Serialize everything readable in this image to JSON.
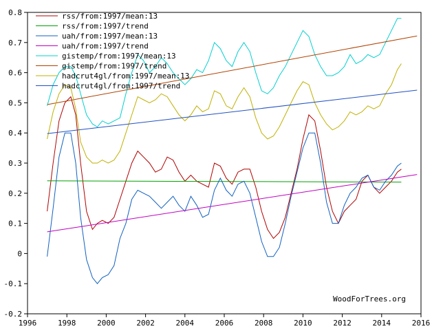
{
  "chart_data": {
    "type": "line",
    "title": "",
    "xlabel": "",
    "ylabel": "",
    "xlim": [
      1996,
      2016
    ],
    "ylim": [
      -0.2,
      0.8
    ],
    "x_ticks": [
      1996,
      1998,
      2000,
      2002,
      2004,
      2006,
      2008,
      2010,
      2012,
      2014,
      2016
    ],
    "y_ticks": [
      -0.2,
      -0.1,
      0,
      0.1,
      0.2,
      0.3,
      0.4,
      0.5,
      0.6,
      0.7,
      0.8
    ],
    "x_tick_labels": [
      "1996",
      "1998",
      "2000",
      "2002",
      "2004",
      "2006",
      "2008",
      "2010",
      "2012",
      "2014",
      "2016"
    ],
    "y_tick_labels": [
      "-0.2",
      "-0.1",
      "0",
      "0.1",
      "0.2",
      "0.3",
      "0.4",
      "0.5",
      "0.6",
      "0.7",
      "0.8"
    ],
    "grid": false,
    "legend_position": "top-left",
    "watermark": "WoodForTrees.org",
    "series": [
      {
        "name": "rss/from:1997/mean:13",
        "color": "#b00000",
        "x": [
          1997.0,
          1997.3,
          1997.6,
          1997.9,
          1998.2,
          1998.45,
          1998.7,
          1999.0,
          1999.3,
          1999.55,
          1999.8,
          2000.1,
          2000.4,
          2000.7,
          2001.0,
          2001.3,
          2001.6,
          2001.9,
          2002.2,
          2002.5,
          2002.8,
          2003.1,
          2003.4,
          2003.7,
          2004.0,
          2004.3,
          2004.6,
          2004.9,
          2005.2,
          2005.5,
          2005.8,
          2006.1,
          2006.4,
          2006.7,
          2007.0,
          2007.3,
          2007.6,
          2007.9,
          2008.2,
          2008.5,
          2008.8,
          2009.1,
          2009.4,
          2009.7,
          2010.0,
          2010.3,
          2010.6,
          2010.9,
          2011.2,
          2011.5,
          2011.8,
          2012.1,
          2012.4,
          2012.7,
          2013.0,
          2013.3,
          2013.6,
          2013.9,
          2014.2,
          2014.5,
          2014.8,
          2015.0
        ],
        "y": [
          0.14,
          0.3,
          0.44,
          0.5,
          0.52,
          0.46,
          0.3,
          0.14,
          0.08,
          0.1,
          0.11,
          0.1,
          0.12,
          0.18,
          0.24,
          0.3,
          0.34,
          0.32,
          0.3,
          0.27,
          0.28,
          0.32,
          0.31,
          0.27,
          0.24,
          0.26,
          0.24,
          0.23,
          0.22,
          0.3,
          0.29,
          0.25,
          0.23,
          0.27,
          0.28,
          0.28,
          0.22,
          0.14,
          0.08,
          0.05,
          0.07,
          0.12,
          0.2,
          0.28,
          0.38,
          0.46,
          0.44,
          0.34,
          0.22,
          0.14,
          0.1,
          0.14,
          0.16,
          0.18,
          0.24,
          0.26,
          0.22,
          0.2,
          0.22,
          0.24,
          0.27,
          0.28
        ]
      },
      {
        "name": "rss/from:1997/trend",
        "color": "#00a000",
        "x": [
          1997.0,
          2015.0
        ],
        "y": [
          0.241,
          0.237
        ]
      },
      {
        "name": "uah/from:1997/mean:13",
        "color": "#1060c0",
        "x": [
          1997.0,
          1997.3,
          1997.6,
          1997.9,
          1998.2,
          1998.45,
          1998.7,
          1999.0,
          1999.3,
          1999.55,
          1999.8,
          2000.1,
          2000.4,
          2000.7,
          2001.0,
          2001.3,
          2001.6,
          2001.9,
          2002.2,
          2002.5,
          2002.8,
          2003.1,
          2003.4,
          2003.7,
          2004.0,
          2004.3,
          2004.6,
          2004.9,
          2005.2,
          2005.5,
          2005.8,
          2006.1,
          2006.4,
          2006.7,
          2007.0,
          2007.3,
          2007.6,
          2007.9,
          2008.2,
          2008.5,
          2008.8,
          2009.1,
          2009.4,
          2009.7,
          2010.0,
          2010.3,
          2010.6,
          2010.9,
          2011.2,
          2011.5,
          2011.8,
          2012.1,
          2012.4,
          2012.7,
          2013.0,
          2013.3,
          2013.6,
          2013.9,
          2014.2,
          2014.5,
          2014.8,
          2015.0
        ],
        "y": [
          -0.01,
          0.15,
          0.32,
          0.4,
          0.4,
          0.3,
          0.12,
          -0.02,
          -0.08,
          -0.1,
          -0.08,
          -0.07,
          -0.04,
          0.05,
          0.1,
          0.18,
          0.21,
          0.2,
          0.19,
          0.17,
          0.15,
          0.17,
          0.19,
          0.16,
          0.14,
          0.19,
          0.16,
          0.12,
          0.13,
          0.21,
          0.25,
          0.21,
          0.19,
          0.23,
          0.24,
          0.2,
          0.12,
          0.04,
          -0.01,
          -0.01,
          0.02,
          0.1,
          0.19,
          0.27,
          0.35,
          0.4,
          0.4,
          0.3,
          0.17,
          0.1,
          0.1,
          0.16,
          0.2,
          0.22,
          0.25,
          0.26,
          0.22,
          0.21,
          0.24,
          0.26,
          0.29,
          0.3
        ]
      },
      {
        "name": "uah/from:1997/trend",
        "color": "#c000c0",
        "x": [
          1997.0,
          2015.8
        ],
        "y": [
          0.072,
          0.262
        ]
      },
      {
        "name": "gistemp/from:1997/mean:13",
        "color": "#00d0d0",
        "x": [
          1997.0,
          1997.3,
          1997.6,
          1997.9,
          1998.2,
          1998.45,
          1998.7,
          1999.0,
          1999.3,
          1999.55,
          1999.8,
          2000.1,
          2000.4,
          2000.7,
          2001.0,
          2001.3,
          2001.6,
          2001.9,
          2002.2,
          2002.5,
          2002.8,
          2003.1,
          2003.4,
          2003.7,
          2004.0,
          2004.3,
          2004.6,
          2004.9,
          2005.2,
          2005.5,
          2005.8,
          2006.1,
          2006.4,
          2006.7,
          2007.0,
          2007.3,
          2007.6,
          2007.9,
          2008.2,
          2008.5,
          2008.8,
          2009.1,
          2009.4,
          2009.7,
          2010.0,
          2010.3,
          2010.6,
          2010.9,
          2011.2,
          2011.5,
          2011.8,
          2012.1,
          2012.4,
          2012.7,
          2013.0,
          2013.3,
          2013.6,
          2013.9,
          2014.2,
          2014.5,
          2014.8,
          2015.0
        ],
        "y": [
          0.49,
          0.56,
          0.6,
          0.62,
          0.62,
          0.59,
          0.53,
          0.46,
          0.43,
          0.42,
          0.44,
          0.43,
          0.44,
          0.45,
          0.53,
          0.6,
          0.66,
          0.64,
          0.6,
          0.62,
          0.65,
          0.63,
          0.6,
          0.58,
          0.56,
          0.58,
          0.61,
          0.6,
          0.64,
          0.7,
          0.68,
          0.64,
          0.62,
          0.67,
          0.7,
          0.67,
          0.6,
          0.54,
          0.53,
          0.55,
          0.59,
          0.62,
          0.66,
          0.7,
          0.74,
          0.72,
          0.66,
          0.62,
          0.59,
          0.59,
          0.6,
          0.62,
          0.66,
          0.63,
          0.64,
          0.66,
          0.65,
          0.66,
          0.7,
          0.74,
          0.78,
          0.78
        ]
      },
      {
        "name": "gistemp/from:1997/trend",
        "color": "#b04000",
        "x": [
          1997.0,
          2015.8
        ],
        "y": [
          0.494,
          0.722
        ]
      },
      {
        "name": "hadcrut4gl/from:1997/mean:13",
        "color": "#c0b000",
        "x": [
          1997.0,
          1997.3,
          1997.6,
          1997.9,
          1998.2,
          1998.45,
          1998.7,
          1999.0,
          1999.3,
          1999.55,
          1999.8,
          2000.1,
          2000.4,
          2000.7,
          2001.0,
          2001.3,
          2001.6,
          2001.9,
          2002.2,
          2002.5,
          2002.8,
          2003.1,
          2003.4,
          2003.7,
          2004.0,
          2004.3,
          2004.6,
          2004.9,
          2005.2,
          2005.5,
          2005.8,
          2006.1,
          2006.4,
          2006.7,
          2007.0,
          2007.3,
          2007.6,
          2007.9,
          2008.2,
          2008.5,
          2008.8,
          2009.1,
          2009.4,
          2009.7,
          2010.0,
          2010.3,
          2010.6,
          2010.9,
          2011.2,
          2011.5,
          2011.8,
          2012.1,
          2012.4,
          2012.7,
          2013.0,
          2013.3,
          2013.6,
          2013.9,
          2014.2,
          2014.5,
          2014.8,
          2015.0
        ],
        "y": [
          0.38,
          0.47,
          0.53,
          0.56,
          0.55,
          0.48,
          0.37,
          0.32,
          0.3,
          0.3,
          0.31,
          0.3,
          0.31,
          0.34,
          0.4,
          0.46,
          0.52,
          0.51,
          0.5,
          0.51,
          0.53,
          0.52,
          0.49,
          0.46,
          0.44,
          0.46,
          0.49,
          0.47,
          0.48,
          0.54,
          0.53,
          0.49,
          0.48,
          0.52,
          0.55,
          0.52,
          0.45,
          0.4,
          0.38,
          0.39,
          0.42,
          0.46,
          0.5,
          0.54,
          0.57,
          0.56,
          0.5,
          0.46,
          0.43,
          0.41,
          0.42,
          0.44,
          0.47,
          0.46,
          0.47,
          0.49,
          0.48,
          0.49,
          0.53,
          0.56,
          0.61,
          0.63
        ]
      },
      {
        "name": "hadcrut4gl/from:1997/trend",
        "color": "#2050c0",
        "x": [
          1997.0,
          2015.8
        ],
        "y": [
          0.398,
          0.542
        ]
      }
    ]
  }
}
